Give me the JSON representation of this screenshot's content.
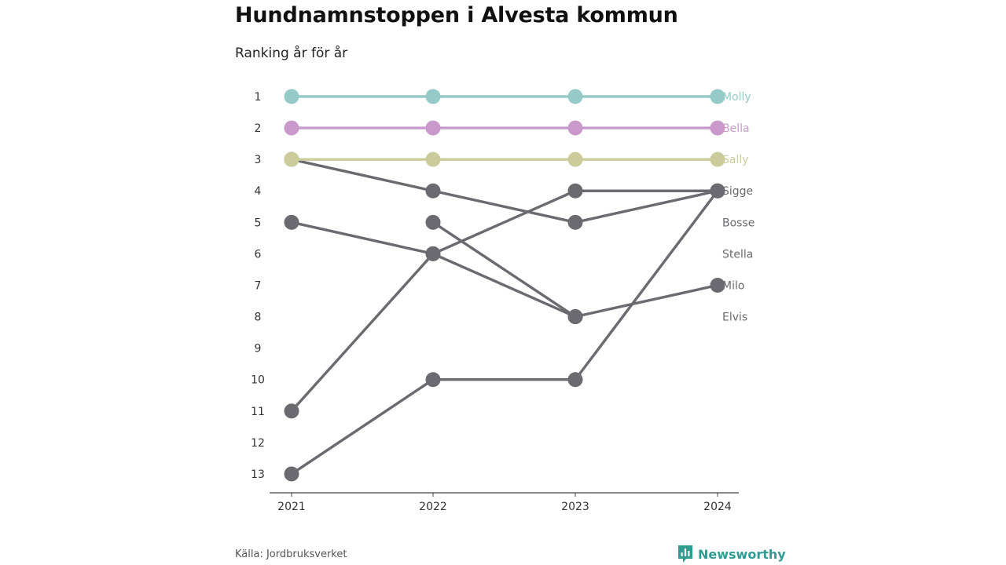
{
  "header": {
    "title": "Hundnamnstoppen i Alvesta kommun",
    "subtitle": "Ranking år för år"
  },
  "footer": {
    "source": "Källa: Jordbruksverket",
    "brand": "Newsworthy"
  },
  "colors": {
    "highlight_molly": "#96cac8",
    "highlight_bella": "#c999cb",
    "highlight_sally": "#cbcc9a",
    "other": "#6b6a70",
    "axis": "#444444",
    "brand": "#2f9c92"
  },
  "chart_data": {
    "type": "line",
    "subtype": "bump",
    "x": [
      "2021",
      "2022",
      "2023",
      "2024"
    ],
    "ylim": [
      1,
      13
    ],
    "y_reversed": true,
    "y_ticks": [
      "1",
      "2",
      "3",
      "4",
      "5",
      "6",
      "7",
      "8",
      "9",
      "10",
      "11",
      "12",
      "13"
    ],
    "series": [
      {
        "name": "Molly",
        "values": [
          1,
          1,
          1,
          1
        ],
        "color": "#96cac8",
        "highlight": true
      },
      {
        "name": "Bella",
        "values": [
          2,
          2,
          2,
          2
        ],
        "color": "#c999cb",
        "highlight": true
      },
      {
        "name": "Sally",
        "values": [
          3,
          3,
          3,
          3
        ],
        "color": "#cbcc9a",
        "highlight": true
      },
      {
        "name": "Sigge",
        "values": [
          11,
          6,
          4,
          4
        ],
        "color": "#6b6a70",
        "highlight": false
      },
      {
        "name": "Bosse",
        "values": [
          3,
          4,
          5,
          4
        ],
        "color": "#6b6a70",
        "highlight": false
      },
      {
        "name": "Stella",
        "values": [
          13,
          10,
          10,
          4
        ],
        "color": "#6b6a70",
        "highlight": false
      },
      {
        "name": "Milo",
        "values": [
          5,
          6,
          8,
          7
        ],
        "color": "#6b6a70",
        "highlight": false
      },
      {
        "name": "Elvis",
        "values": [
          null,
          5,
          8,
          null
        ],
        "color": "#6b6a70",
        "highlight": false
      }
    ],
    "end_labels": [
      "Molly",
      "Bella",
      "Sally",
      "Sigge",
      "Bosse",
      "Stella",
      "Milo",
      "Elvis"
    ]
  }
}
